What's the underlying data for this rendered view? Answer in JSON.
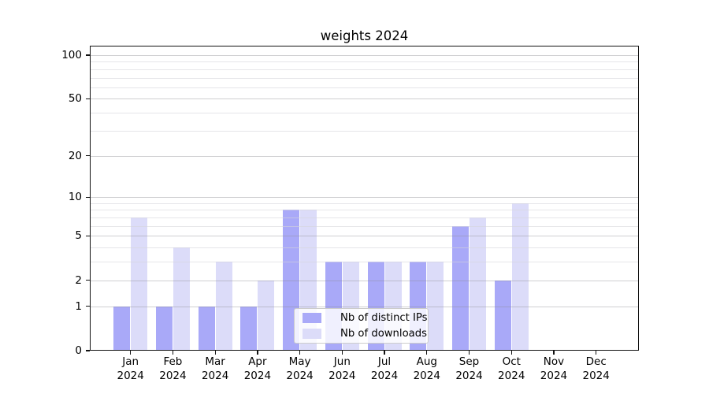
{
  "title": "weights 2024",
  "chart_data": {
    "type": "bar",
    "title": "weights 2024",
    "categories": [
      "Jan 2024",
      "Feb 2024",
      "Mar 2024",
      "Apr 2024",
      "May 2024",
      "Jun 2024",
      "Jul 2024",
      "Aug 2024",
      "Sep 2024",
      "Oct 2024",
      "Nov 2024",
      "Dec 2024"
    ],
    "series": [
      {
        "name": "Nb of distinct IPs",
        "key": "distinct-ips",
        "color": "#a9a9f8",
        "values": [
          1,
          1,
          1,
          1,
          8,
          3,
          3,
          3,
          6,
          2,
          0,
          0
        ]
      },
      {
        "name": "Nb of downloads",
        "key": "downloads",
        "color": "#dcdcf9",
        "values": [
          7,
          4,
          3,
          2,
          8,
          3,
          3,
          3,
          7,
          9,
          0,
          0
        ]
      }
    ],
    "y_axis": {
      "scale": "log1p",
      "major_ticks": [
        100,
        50,
        20,
        10,
        5,
        2,
        1,
        0
      ],
      "minor_ticks": [
        90,
        80,
        70,
        60,
        40,
        30,
        9,
        8,
        7,
        6,
        4,
        3
      ],
      "max": 116
    },
    "xlabel": "",
    "ylabel": "",
    "grid": true,
    "legend_position": "lower center"
  }
}
